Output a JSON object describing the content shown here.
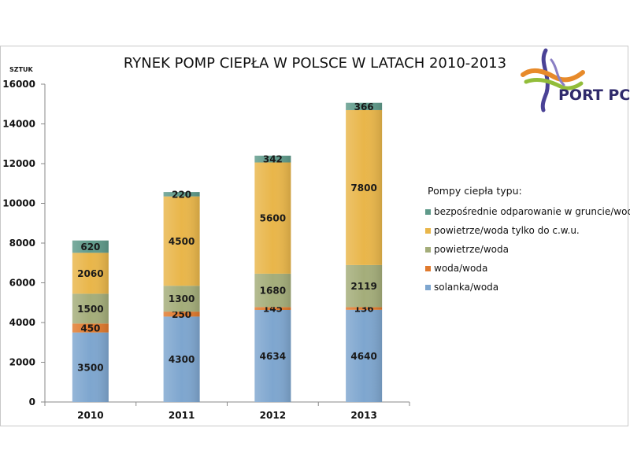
{
  "logo": {
    "text": "PORT PC"
  },
  "chart_data": {
    "type": "bar",
    "stacked": true,
    "title": "RYNEK POMP CIEPŁA W POLSCE W LATACH 2010-2013",
    "ylabel": "SZTUK",
    "xlabel": "",
    "ylim": [
      0,
      16000
    ],
    "yticks": [
      0,
      2000,
      4000,
      6000,
      8000,
      10000,
      12000,
      14000,
      16000
    ],
    "categories": [
      "2010",
      "2011",
      "2012",
      "2013"
    ],
    "grid": false,
    "legend": {
      "title": "Pompy ciepła typu:",
      "placement": "right"
    },
    "series": [
      {
        "name": "solanka/woda",
        "color": "#7ea6cf",
        "values": [
          3500,
          4300,
          4634,
          4640
        ]
      },
      {
        "name": "woda/woda",
        "color": "#e07a2e",
        "values": [
          450,
          250,
          145,
          136
        ]
      },
      {
        "name": "powietrze/woda",
        "color": "#a4ad7a",
        "values": [
          1500,
          1300,
          1680,
          2119
        ]
      },
      {
        "name": "powietrze/woda tylko do c.w.u.",
        "color": "#e9b64a",
        "values": [
          2060,
          4500,
          5600,
          7800
        ]
      },
      {
        "name": "bezpośrednie odparowanie w gruncie/woda",
        "color": "#5f9a8a",
        "values": [
          620,
          220,
          342,
          366
        ]
      }
    ]
  }
}
